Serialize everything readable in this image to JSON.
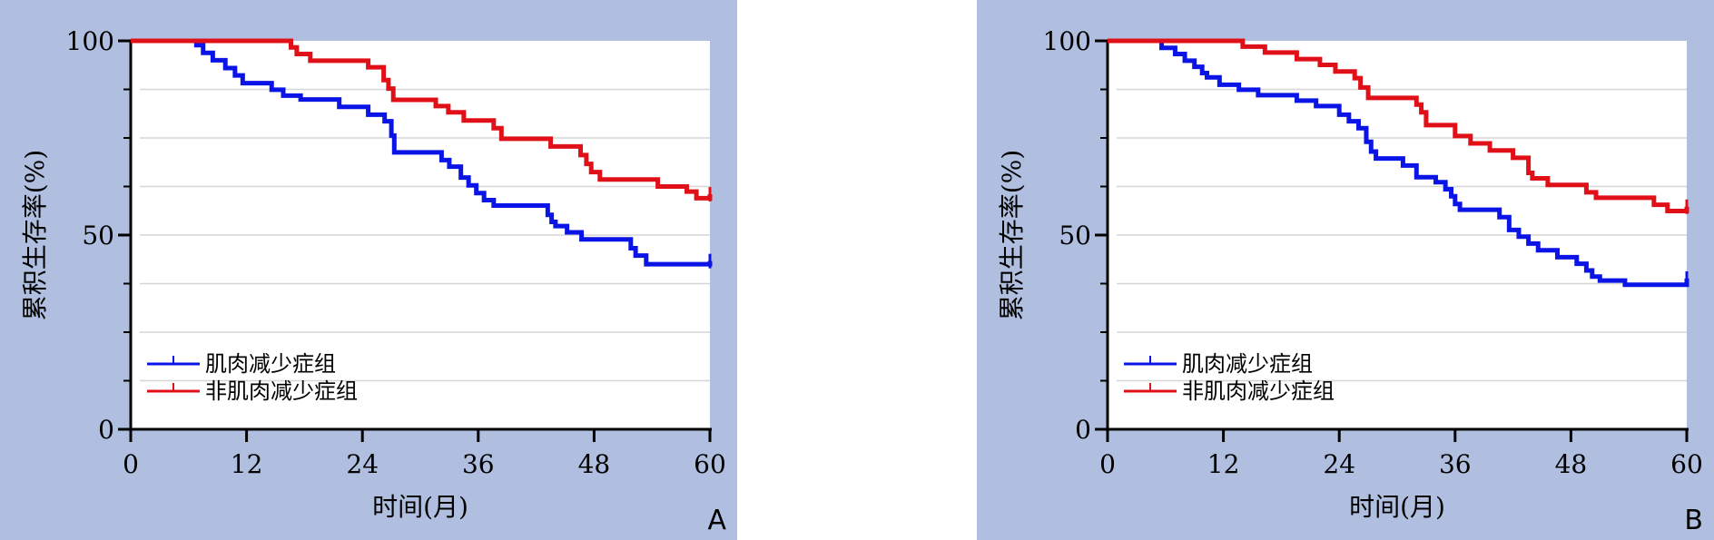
{
  "chart_data": [
    {
      "type": "line",
      "panel_label": "A",
      "xlabel": "时间(月)",
      "ylabel": "累积生存率(%)",
      "xlim": [
        0,
        60
      ],
      "ylim": [
        0,
        100
      ],
      "xticks": [
        0,
        12,
        24,
        36,
        48,
        60
      ],
      "yticks": [
        0,
        50,
        100
      ],
      "grid": true,
      "legend_position": "bottom-left",
      "series": [
        {
          "name": "肌肉减少症组",
          "color": "#0a14e6",
          "x": [
            0,
            6.8,
            7.5,
            8.5,
            9.8,
            10.8,
            11.6,
            12.6,
            14.6,
            15.8,
            17.6,
            21.6,
            24.6,
            26.3,
            27.0,
            27.3,
            32.2,
            33.0,
            34.2,
            35.0,
            35.8,
            36.6,
            37.6,
            43.2,
            43.6,
            44.0,
            45.2,
            46.7,
            51.8,
            52.3,
            53.4,
            60.0
          ],
          "y": [
            100,
            98.9,
            96.9,
            95.0,
            93.0,
            91.1,
            89.1,
            89.1,
            87.4,
            85.9,
            84.9,
            83.0,
            81.0,
            79.3,
            75.6,
            71.3,
            69.3,
            67.6,
            64.8,
            62.8,
            60.8,
            59.0,
            57.6,
            55.2,
            53.4,
            52.3,
            50.7,
            48.9,
            46.6,
            44.7,
            42.5,
            43.3
          ]
        },
        {
          "name": "非肌肉减少症组",
          "color": "#e01018",
          "x": [
            0,
            16.6,
            17.2,
            18.6,
            24.6,
            26.2,
            26.7,
            27.2,
            31.6,
            32.9,
            34.5,
            37.6,
            38.4,
            43.5,
            46.6,
            47.2,
            47.7,
            48.6,
            51.6,
            54.6,
            57.6,
            58.6,
            60.0
          ],
          "y": [
            100,
            98.3,
            96.6,
            94.9,
            93.2,
            89.9,
            87.7,
            84.8,
            83.2,
            81.6,
            79.5,
            77.5,
            74.8,
            72.8,
            70.6,
            68.3,
            66.2,
            64.3,
            64.3,
            62.5,
            61.2,
            59.5,
            60.5
          ]
        }
      ]
    },
    {
      "type": "line",
      "panel_label": "B",
      "xlabel": "时间(月)",
      "ylabel": "累积生存率(%)",
      "xlim": [
        0,
        60
      ],
      "ylim": [
        0,
        100
      ],
      "xticks": [
        0,
        12,
        24,
        36,
        48,
        60
      ],
      "yticks": [
        0,
        50,
        100
      ],
      "grid": true,
      "legend_position": "bottom-left",
      "series": [
        {
          "name": "肌肉减少症组",
          "color": "#0a14e6",
          "x": [
            0,
            5.6,
            7.0,
            8.0,
            9.0,
            9.8,
            10.3,
            11.6,
            13.6,
            15.6,
            19.6,
            21.6,
            24.0,
            25.0,
            26.0,
            26.8,
            27.3,
            27.8,
            30.6,
            32.0,
            34.0,
            35.0,
            35.6,
            36.0,
            36.5,
            40.6,
            41.6,
            42.6,
            43.6,
            44.6,
            46.6,
            48.6,
            49.6,
            50.2,
            51.0,
            53.6,
            60.0
          ],
          "y": [
            100,
            98.2,
            96.6,
            94.9,
            93.3,
            91.7,
            90.6,
            88.7,
            87.4,
            86.0,
            84.6,
            83.2,
            81.0,
            79.3,
            77.5,
            74.0,
            71.5,
            69.7,
            67.9,
            64.9,
            63.6,
            61.8,
            60.0,
            58.0,
            56.5,
            54.6,
            51.3,
            49.6,
            47.8,
            46.1,
            44.3,
            42.6,
            40.9,
            39.3,
            38.3,
            37.2,
            38.8
          ]
        },
        {
          "name": "非肌肉减少症组",
          "color": "#e01018",
          "x": [
            0,
            14.0,
            16.3,
            19.6,
            22.0,
            23.6,
            25.6,
            26.2,
            27.0,
            32.0,
            32.5,
            33.0,
            36.0,
            37.6,
            39.6,
            42.0,
            43.6,
            44.0,
            45.6,
            49.6,
            50.6,
            53.6,
            56.6,
            58.0,
            60.0
          ],
          "y": [
            100,
            98.5,
            97.0,
            95.3,
            93.8,
            92.1,
            90.4,
            88.0,
            85.3,
            83.6,
            81.6,
            78.3,
            75.5,
            73.6,
            71.8,
            69.9,
            66.0,
            64.6,
            62.9,
            61.0,
            59.6,
            59.6,
            57.8,
            56.2,
            57.3
          ]
        }
      ]
    }
  ]
}
